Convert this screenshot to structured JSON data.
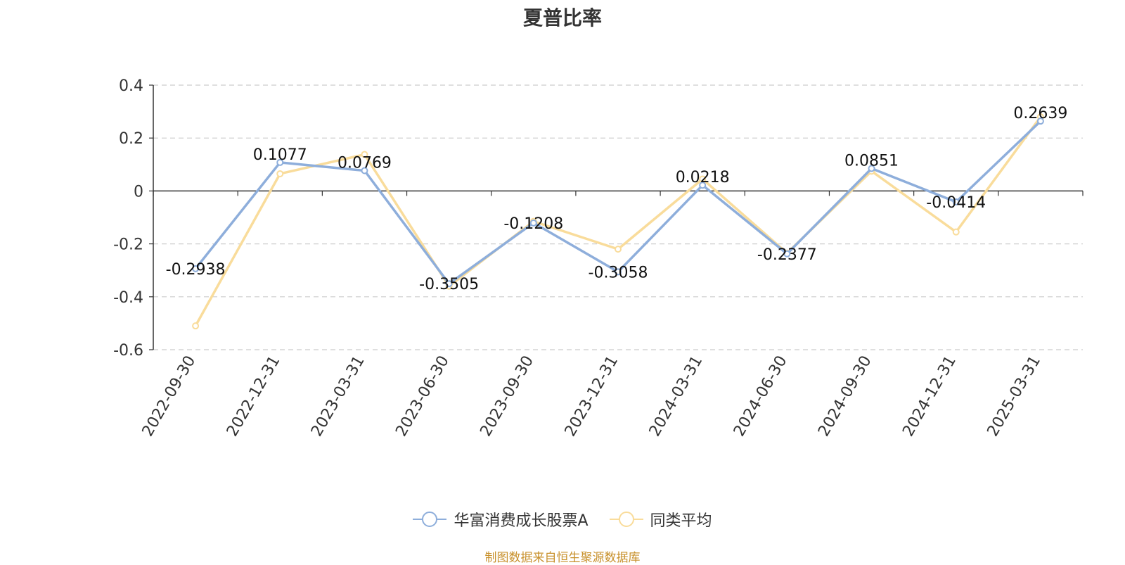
{
  "chart_data": {
    "type": "line",
    "title": "夏普比率",
    "categories": [
      "2022-09-30",
      "2022-12-31",
      "2023-03-31",
      "2023-06-30",
      "2023-09-30",
      "2023-12-31",
      "2024-03-31",
      "2024-06-30",
      "2024-09-30",
      "2024-12-31",
      "2025-03-31"
    ],
    "y_ticks": [
      "0.4",
      "0.2",
      "0",
      "-0.2",
      "-0.4",
      "-0.6"
    ],
    "ylim": [
      -0.6,
      0.4
    ],
    "grid": true,
    "legend_position": "bottom",
    "series": [
      {
        "name": "华富消费成长股票A",
        "color": "#8eaedb",
        "values": [
          -0.2938,
          0.1077,
          0.0769,
          -0.3505,
          -0.1208,
          -0.3058,
          0.0218,
          -0.2377,
          0.0851,
          -0.0414,
          0.2639
        ],
        "labels": [
          "-0.2938",
          "0.1077",
          "0.0769",
          "-0.3505",
          "-0.1208",
          "-0.3058",
          "0.0218",
          "-0.2377",
          "0.0851",
          "-0.0414",
          "0.2639"
        ]
      },
      {
        "name": "同类平均",
        "color": "#f9dc9b",
        "values": [
          -0.51,
          0.065,
          0.138,
          -0.36,
          -0.115,
          -0.22,
          0.045,
          -0.235,
          0.075,
          -0.155,
          0.28
        ]
      }
    ]
  },
  "source_note": "制图数据来自恒生聚源数据库"
}
